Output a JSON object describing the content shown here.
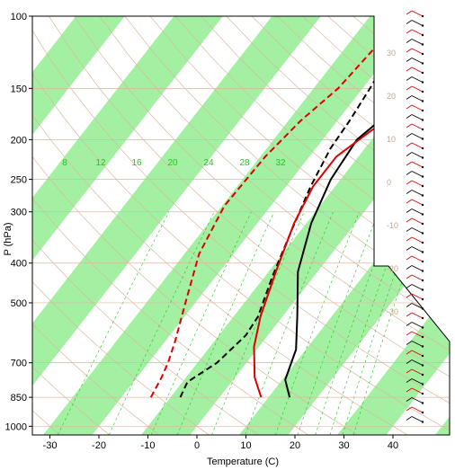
{
  "chart_data": {
    "type": "line",
    "title": "",
    "xlabel": "Temperature (C)",
    "ylabel": "P (hPa)",
    "x_ticks": [
      -30,
      -20,
      -10,
      0,
      10,
      20,
      30,
      40
    ],
    "y_ticks": [
      100,
      150,
      200,
      250,
      300,
      400,
      500,
      700,
      850,
      1000
    ],
    "xlim": [
      -34,
      37
    ],
    "ylim": [
      1050,
      100
    ],
    "y_scale": "log",
    "skew": "isotherms slanted toward upper right",
    "grid": true,
    "background_bands": "alternating green/white temperature bands",
    "band_color": "#a3f0a3",
    "mixing_ratio_labels": [
      "8",
      "12",
      "16",
      "20",
      "24",
      "28",
      "32"
    ],
    "adiabat_labels": [
      "-30",
      "-20",
      "-10",
      "0",
      "10",
      "20",
      "30"
    ],
    "wind_barbs": "two columns of red and black wind barbs on right side",
    "series": [
      {
        "style": "solid",
        "color": "#000000",
        "points": [
          [
            14.3,
            850
          ],
          [
            10.6,
            770
          ],
          [
            8.0,
            650
          ],
          [
            3.0,
            540
          ],
          [
            -4.0,
            420
          ],
          [
            -9.0,
            320
          ],
          [
            -12.0,
            250
          ],
          [
            -13.0,
            200
          ],
          [
            -11.0,
            175
          ],
          [
            -6.0,
            150
          ],
          [
            -2.0,
            130
          ],
          [
            0.0,
            112
          ],
          [
            0.5,
            100
          ]
        ]
      },
      {
        "style": "dashed",
        "color": "#000000",
        "points": [
          [
            -8.0,
            850
          ],
          [
            -9.0,
            780
          ],
          [
            -6.0,
            700
          ],
          [
            -4.5,
            600
          ],
          [
            -5.0,
            540
          ],
          [
            -8.5,
            430
          ],
          [
            -12.0,
            330
          ],
          [
            -15.0,
            260
          ],
          [
            -17.0,
            210
          ],
          [
            -17.5,
            180
          ],
          [
            -18.5,
            150
          ],
          [
            -20.0,
            120
          ],
          [
            -21.0,
            100
          ]
        ]
      },
      {
        "style": "solid",
        "color": "#dd0000",
        "points": [
          [
            8.5,
            850
          ],
          [
            4.0,
            760
          ],
          [
            -1.0,
            640
          ],
          [
            -4.5,
            540
          ],
          [
            -8.5,
            420
          ],
          [
            -12.5,
            320
          ],
          [
            -14.5,
            260
          ],
          [
            -14.5,
            220
          ],
          [
            -11.5,
            190
          ],
          [
            -6.0,
            160
          ],
          [
            -1.5,
            140
          ],
          [
            1.5,
            120
          ],
          [
            3.0,
            100
          ]
        ]
      },
      {
        "style": "dashed",
        "color": "#dd0000",
        "points": [
          [
            -14.0,
            850
          ],
          [
            -15.0,
            760
          ],
          [
            -16.0,
            700
          ],
          [
            -18.0,
            620
          ],
          [
            -22.0,
            500
          ],
          [
            -27.0,
            380
          ],
          [
            -29.5,
            290
          ],
          [
            -29.0,
            220
          ],
          [
            -27.5,
            180
          ],
          [
            -25.0,
            150
          ],
          [
            -24.0,
            120
          ],
          [
            -23.5,
            100
          ]
        ]
      }
    ]
  },
  "page": {
    "xlabel": "Temperature (C)",
    "ylabel": "P (hPa)"
  }
}
